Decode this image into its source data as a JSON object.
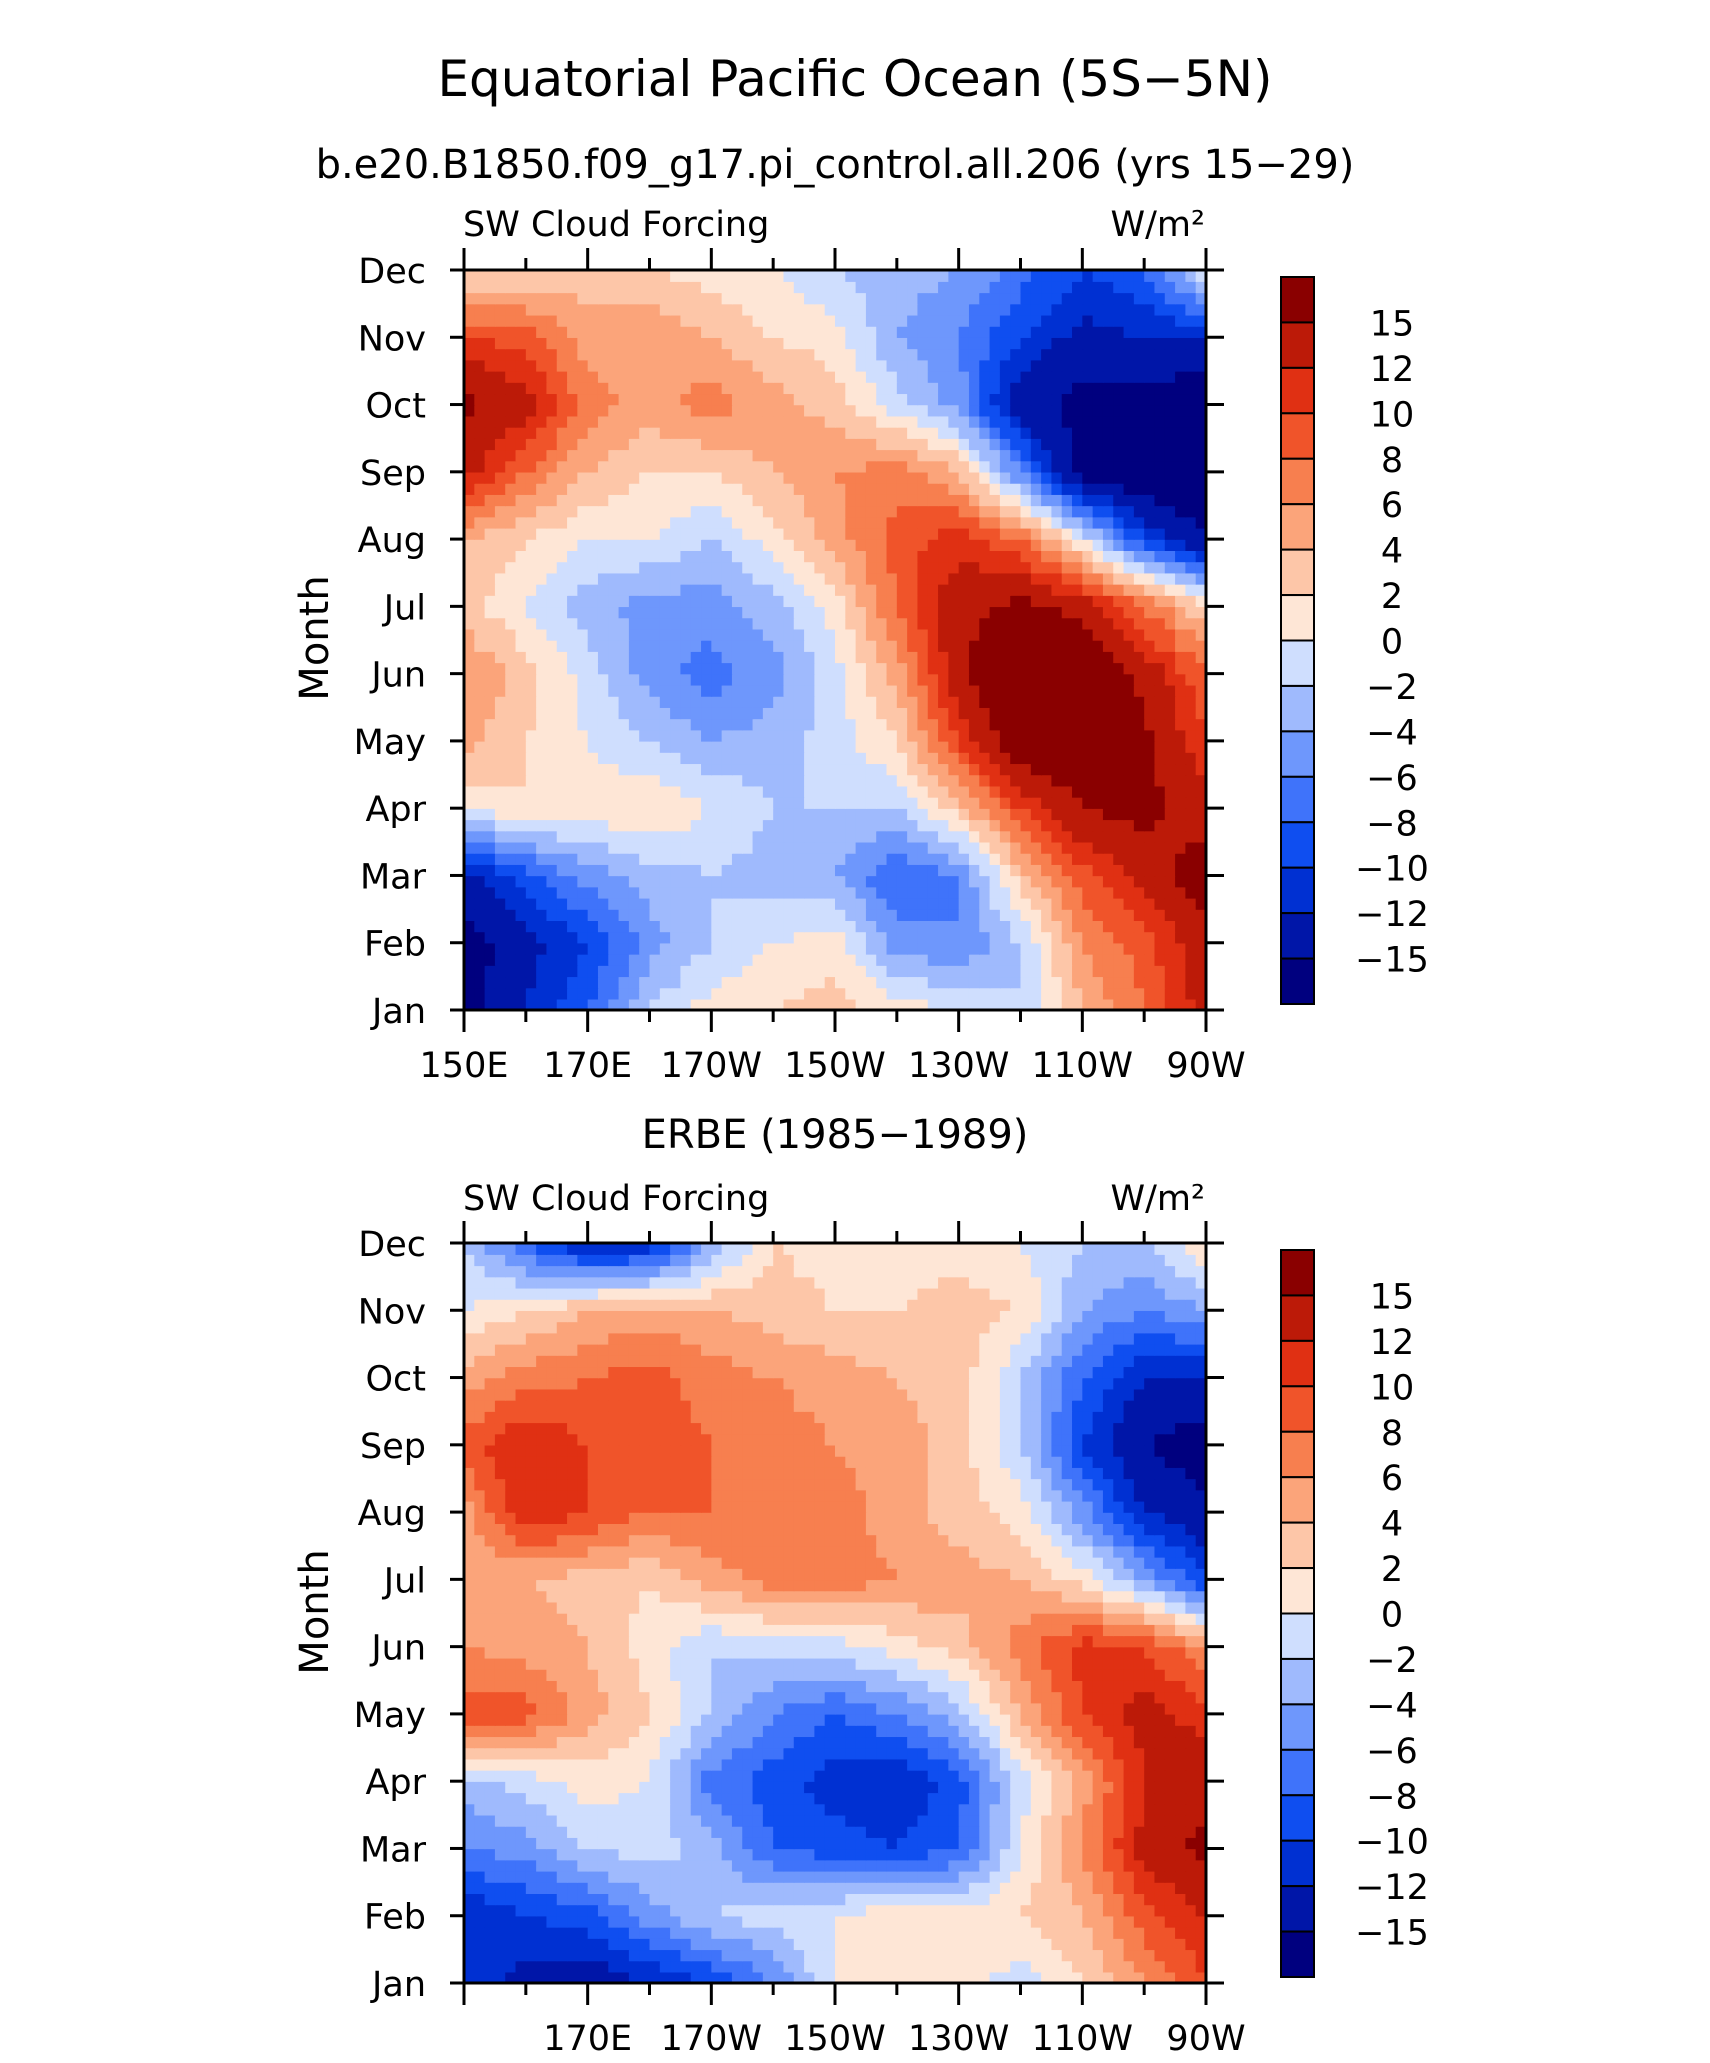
{
  "figure": {
    "title": "Equatorial Pacific Ocean (5S−5N)",
    "subtitle": "b.e20.B1850.f09_g17.pi_control.all.206 (yrs 15−29)",
    "panel2_title": "ERBE (1985−1989)"
  },
  "colorbar": {
    "labels": [
      "15",
      "12",
      "10",
      "8",
      "6",
      "4",
      "2",
      "0",
      "−2",
      "−4",
      "−6",
      "−8",
      "−10",
      "−12",
      "−15"
    ],
    "levels": [
      -15,
      -12,
      -10,
      -8,
      -6,
      -4,
      -2,
      0,
      2,
      4,
      6,
      8,
      10,
      12,
      15
    ],
    "colors": [
      "#00007f",
      "#0016a8",
      "#0030d2",
      "#0f4ef0",
      "#3f73fa",
      "#6e97fc",
      "#9fbafd",
      "#cfdefe",
      "#fee6d6",
      "#fdc6a8",
      "#fba47a",
      "#f77f4f",
      "#f0542a",
      "#e03013",
      "#bc1a08",
      "#8a0000"
    ]
  },
  "chart_data": [
    {
      "type": "heatmap",
      "panel_label": "SW Cloud Forcing",
      "units": "W/m²",
      "ylabel": "Month",
      "x_tick_labels": [
        "150E",
        "170E",
        "170W",
        "150W",
        "130W",
        "110W",
        "90W"
      ],
      "y_tick_labels": [
        "Jan",
        "Feb",
        "Mar",
        "Apr",
        "May",
        "Jun",
        "Jul",
        "Aug",
        "Sep",
        "Oct",
        "Nov",
        "Dec"
      ],
      "xlim": [
        150,
        270
      ],
      "ylim": [
        1,
        12
      ],
      "x_lon": [
        150,
        160,
        170,
        180,
        190,
        200,
        210,
        220,
        230,
        240,
        250,
        260,
        270
      ],
      "y_month": [
        1,
        2,
        3,
        4,
        5,
        6,
        7,
        8,
        9,
        10,
        11,
        12
      ],
      "values": [
        [
          -16,
          -12,
          -8,
          -2,
          1,
          2,
          3,
          1,
          0,
          -2,
          4,
          8,
          13
        ],
        [
          -17,
          -13,
          -10,
          -5,
          -2,
          0,
          1,
          -5,
          -6,
          -2,
          6,
          9,
          14
        ],
        [
          -13,
          -9,
          -5,
          -3,
          -2,
          -3,
          -4,
          -8,
          -6,
          3,
          9,
          13,
          17
        ],
        [
          0,
          2,
          1,
          2,
          0,
          -2,
          -2,
          -2,
          3,
          10,
          15,
          16,
          13
        ],
        [
          5,
          2,
          0,
          -2,
          -4,
          -3,
          -1,
          2,
          10,
          18,
          18,
          16,
          10
        ],
        [
          6,
          3,
          -1,
          -5,
          -7,
          -5,
          -1,
          5,
          14,
          20,
          19,
          14,
          8
        ],
        [
          3,
          0,
          -3,
          -5,
          -5,
          -3,
          1,
          8,
          14,
          16,
          14,
          8,
          2
        ],
        [
          4,
          2,
          0,
          0,
          -2,
          1,
          5,
          9,
          11,
          8,
          0,
          -10,
          -15
        ],
        [
          13,
          8,
          4,
          2,
          2,
          4,
          6,
          7,
          4,
          -6,
          -17,
          -18,
          -18
        ],
        [
          16,
          13,
          7,
          5,
          7,
          5,
          3,
          -1,
          -5,
          -14,
          -16,
          -16,
          -18
        ],
        [
          10,
          9,
          5,
          6,
          4,
          2,
          1,
          -4,
          -6,
          -10,
          -13,
          -12,
          -12
        ],
        [
          2,
          2,
          3,
          2,
          1,
          0,
          -2,
          -3,
          -4,
          -7,
          -10,
          -8,
          0
        ]
      ]
    },
    {
      "type": "heatmap",
      "title": "ERBE (1985−1989)",
      "panel_label": "SW Cloud Forcing",
      "units": "W/m²",
      "ylabel": "Month",
      "x_tick_labels": [
        "170E",
        "170W",
        "150W",
        "130W",
        "110W",
        "90W"
      ],
      "y_tick_labels": [
        "Jan",
        "Feb",
        "Mar",
        "Apr",
        "May",
        "Jun",
        "Jul",
        "Aug",
        "Sep",
        "Oct",
        "Nov",
        "Dec"
      ],
      "xlim": [
        150,
        270
      ],
      "ylim": [
        1,
        12
      ],
      "x_lon": [
        150,
        160,
        170,
        180,
        190,
        200,
        210,
        220,
        230,
        240,
        250,
        260,
        270
      ],
      "y_month": [
        1,
        2,
        3,
        4,
        5,
        6,
        7,
        8,
        9,
        10,
        11,
        12
      ],
      "values": [
        [
          -10,
          -13,
          -14,
          -12,
          -10,
          -6,
          0,
          2,
          1,
          -1,
          2,
          6,
          10
        ],
        [
          -12,
          -10,
          -9,
          -5,
          -2,
          -1,
          0,
          2,
          1,
          2,
          4,
          9,
          12
        ],
        [
          -6,
          -5,
          -2,
          -1,
          -3,
          -8,
          -9,
          -10,
          -8,
          0,
          6,
          13,
          16
        ],
        [
          -3,
          -1,
          1,
          0,
          -7,
          -9,
          -11,
          -12,
          -9,
          -1,
          5,
          12,
          14
        ],
        [
          9,
          9,
          5,
          2,
          -2,
          -6,
          -8,
          -6,
          -3,
          4,
          10,
          13,
          11
        ],
        [
          6,
          5,
          4,
          1,
          -2,
          -1,
          -1,
          1,
          3,
          7,
          11,
          10,
          6
        ],
        [
          4,
          4,
          3,
          2,
          5,
          7,
          7,
          6,
          5,
          4,
          1,
          -4,
          -10
        ],
        [
          5,
          12,
          10,
          8,
          8,
          7,
          7,
          5,
          3,
          1,
          -5,
          -12,
          -14
        ],
        [
          9,
          12,
          10,
          9,
          8,
          7,
          6,
          5,
          3,
          -2,
          -10,
          -15,
          -17
        ],
        [
          5,
          7,
          8,
          9,
          7,
          6,
          5,
          4,
          3,
          -2,
          -8,
          -12,
          -12
        ],
        [
          0,
          2,
          4,
          5,
          4,
          3,
          2,
          2,
          3,
          2,
          -4,
          -6,
          -4
        ],
        [
          -2,
          -8,
          -13,
          -12,
          -4,
          2,
          1,
          1,
          1,
          0,
          -2,
          -2,
          2
        ]
      ]
    }
  ]
}
